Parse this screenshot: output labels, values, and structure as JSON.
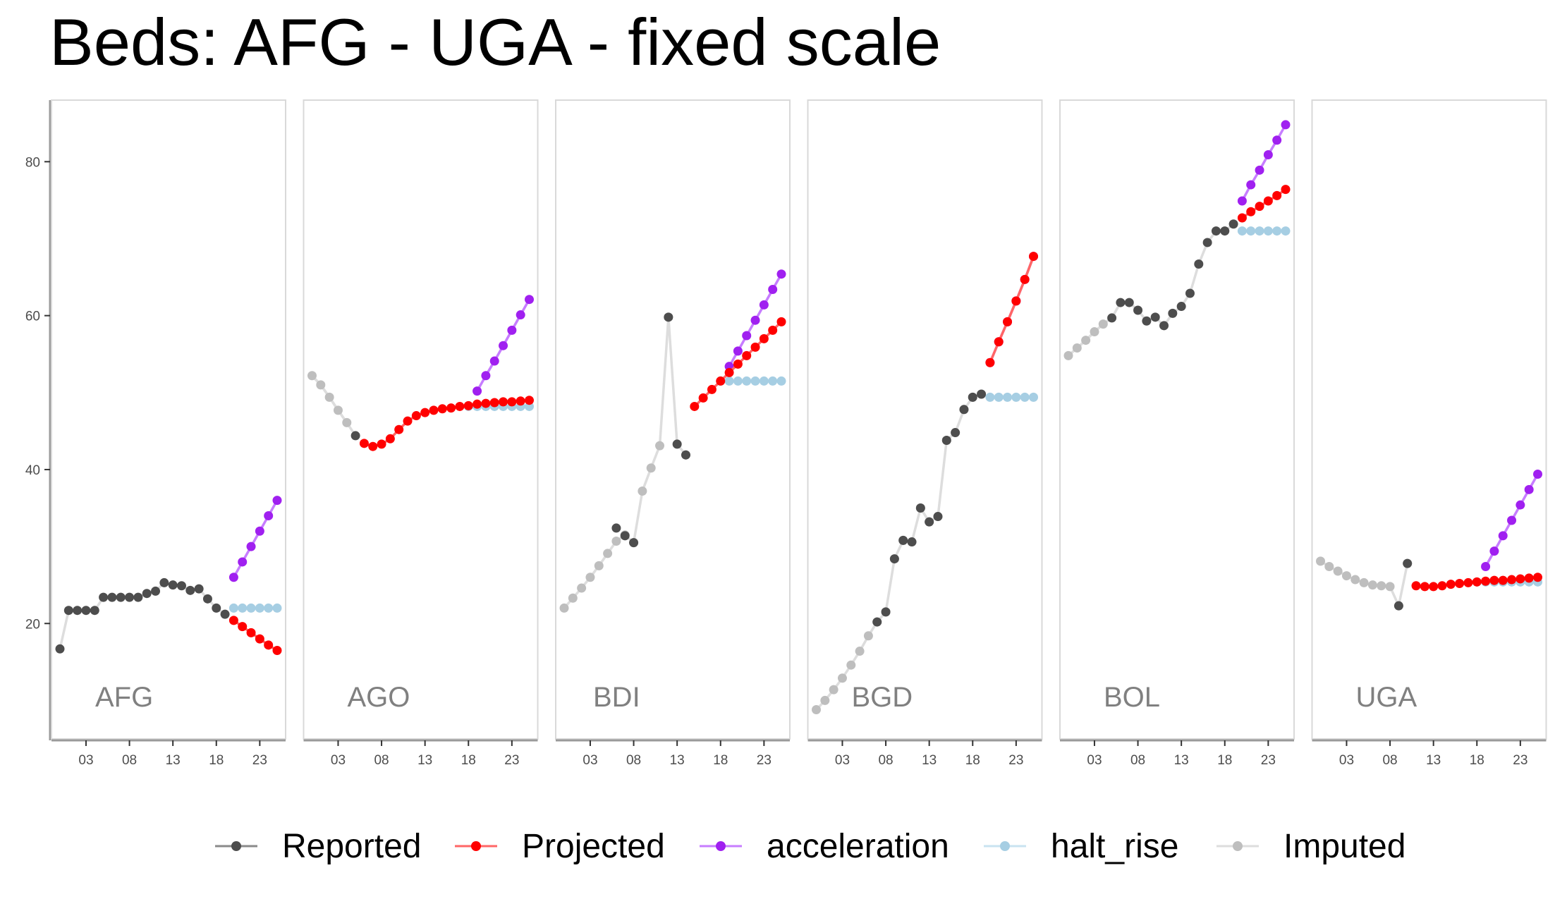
{
  "title": "Beds: AFG - UGA - fixed scale",
  "colors": {
    "Reported": "#4d4d4d",
    "Projected": "#ff0000",
    "acceleration": "#a020f0",
    "halt_rise": "#a6cee3",
    "Imputed": "#bebebe"
  },
  "chart_data": {
    "type": "line",
    "facets": [
      "AFG",
      "AGO",
      "BDI",
      "BGD",
      "BOL",
      "UGA"
    ],
    "xlim": [
      0,
      25
    ],
    "ylim": [
      5,
      88
    ],
    "x_ticks": [
      3,
      8,
      13,
      18,
      23
    ],
    "x_tick_labels": [
      "03",
      "08",
      "13",
      "18",
      "23"
    ],
    "y_ticks": [
      20,
      40,
      60,
      80
    ],
    "y_tick_labels": [
      "20",
      "40",
      "60",
      "80"
    ],
    "xlabel": "",
    "ylabel": "",
    "legend_position": "bottom",
    "legend": [
      "Reported",
      "Projected",
      "acceleration",
      "halt_rise",
      "Imputed"
    ],
    "panels": [
      {
        "facet": "AFG",
        "Imputed": [],
        "Reported": [
          [
            0,
            16.7
          ],
          [
            1,
            21.7
          ],
          [
            2,
            21.7
          ],
          [
            3,
            21.7
          ],
          [
            4,
            21.7
          ],
          [
            5,
            23.4
          ],
          [
            6,
            23.4
          ],
          [
            7,
            23.4
          ],
          [
            8,
            23.4
          ],
          [
            9,
            23.4
          ],
          [
            10,
            23.9
          ],
          [
            11,
            24.2
          ],
          [
            12,
            25.3
          ],
          [
            13,
            25.0
          ],
          [
            14,
            24.9
          ],
          [
            15,
            24.3
          ],
          [
            16,
            24.5
          ],
          [
            17,
            23.2
          ],
          [
            18,
            22.0
          ],
          [
            19,
            21.2
          ]
        ],
        "Projected": [
          [
            20,
            20.4
          ],
          [
            21,
            19.6
          ],
          [
            22,
            18.8
          ],
          [
            23,
            18.0
          ],
          [
            24,
            17.2
          ],
          [
            25,
            16.5
          ]
        ],
        "acceleration": [
          [
            20,
            26.0
          ],
          [
            21,
            28.0
          ],
          [
            22,
            30.0
          ],
          [
            23,
            32.0
          ],
          [
            24,
            34.0
          ],
          [
            25,
            36.0
          ]
        ],
        "halt_rise": [
          [
            20,
            22.0
          ],
          [
            21,
            22.0
          ],
          [
            22,
            22.0
          ],
          [
            23,
            22.0
          ],
          [
            24,
            22.0
          ],
          [
            25,
            22.0
          ]
        ]
      },
      {
        "facet": "AGO",
        "Imputed": [
          [
            0,
            52.2
          ],
          [
            1,
            51.0
          ],
          [
            2,
            49.4
          ],
          [
            3,
            47.7
          ],
          [
            4,
            46.1
          ]
        ],
        "Reported": [
          [
            5,
            44.4
          ]
        ],
        "Projected": [
          [
            6,
            43.4
          ],
          [
            7,
            43.0
          ],
          [
            8,
            43.3
          ],
          [
            9,
            44.0
          ],
          [
            10,
            45.2
          ],
          [
            11,
            46.3
          ],
          [
            12,
            47.0
          ],
          [
            13,
            47.4
          ],
          [
            14,
            47.7
          ],
          [
            15,
            47.9
          ],
          [
            16,
            48.0
          ],
          [
            17,
            48.2
          ],
          [
            18,
            48.3
          ],
          [
            19,
            48.5
          ],
          [
            20,
            48.6
          ],
          [
            21,
            48.7
          ],
          [
            22,
            48.8
          ],
          [
            23,
            48.8
          ],
          [
            24,
            48.9
          ],
          [
            25,
            49.0
          ]
        ],
        "acceleration": [
          [
            19,
            50.2
          ],
          [
            20,
            52.2
          ],
          [
            21,
            54.1
          ],
          [
            22,
            56.1
          ],
          [
            23,
            58.1
          ],
          [
            24,
            60.1
          ],
          [
            25,
            62.1
          ]
        ],
        "halt_rise": [
          [
            18,
            48.2
          ],
          [
            19,
            48.2
          ],
          [
            20,
            48.2
          ],
          [
            21,
            48.2
          ],
          [
            22,
            48.2
          ],
          [
            23,
            48.2
          ],
          [
            24,
            48.2
          ],
          [
            25,
            48.2
          ]
        ]
      },
      {
        "facet": "BDI",
        "Imputed": [
          [
            0,
            22.0
          ],
          [
            1,
            23.3
          ],
          [
            2,
            24.6
          ],
          [
            3,
            26.0
          ],
          [
            4,
            27.5
          ],
          [
            5,
            29.1
          ],
          [
            6,
            30.7
          ],
          [
            7,
            31.5
          ],
          [
            8,
            30.5
          ],
          [
            9,
            37.2
          ],
          [
            10,
            40.2
          ],
          [
            11,
            43.1
          ],
          [
            12,
            59.8
          ],
          [
            13,
            43.3
          ],
          [
            14,
            41.9
          ]
        ],
        "Reported": [
          [
            6,
            32.4
          ],
          [
            7,
            31.4
          ],
          [
            8,
            30.5
          ],
          [
            12,
            59.8
          ],
          [
            13,
            43.3
          ],
          [
            14,
            41.9
          ]
        ],
        "Projected": [
          [
            15,
            48.2
          ],
          [
            16,
            49.3
          ],
          [
            17,
            50.4
          ],
          [
            18,
            51.5
          ],
          [
            19,
            52.6
          ],
          [
            20,
            53.7
          ],
          [
            21,
            54.8
          ],
          [
            22,
            55.9
          ],
          [
            23,
            57.0
          ],
          [
            24,
            58.1
          ],
          [
            25,
            59.2
          ]
        ],
        "acceleration": [
          [
            19,
            53.4
          ],
          [
            20,
            55.4
          ],
          [
            21,
            57.4
          ],
          [
            22,
            59.4
          ],
          [
            23,
            61.4
          ],
          [
            24,
            63.4
          ],
          [
            25,
            65.4
          ]
        ],
        "halt_rise": [
          [
            18,
            51.5
          ],
          [
            19,
            51.5
          ],
          [
            20,
            51.5
          ],
          [
            21,
            51.5
          ],
          [
            22,
            51.5
          ],
          [
            23,
            51.5
          ],
          [
            24,
            51.5
          ],
          [
            25,
            51.5
          ]
        ]
      },
      {
        "facet": "BGD",
        "Imputed": [
          [
            0,
            8.8
          ],
          [
            1,
            10.0
          ],
          [
            2,
            11.4
          ],
          [
            3,
            12.9
          ],
          [
            4,
            14.6
          ],
          [
            5,
            16.4
          ],
          [
            6,
            18.4
          ],
          [
            7,
            20.2
          ],
          [
            8,
            21.5
          ],
          [
            9,
            28.4
          ],
          [
            10,
            30.8
          ],
          [
            11,
            30.6
          ],
          [
            12,
            35.0
          ],
          [
            13,
            33.2
          ],
          [
            14,
            33.9
          ],
          [
            15,
            43.8
          ],
          [
            16,
            44.8
          ],
          [
            17,
            47.8
          ],
          [
            18,
            49.4
          ],
          [
            19,
            49.8
          ]
        ],
        "Reported": [
          [
            7,
            20.2
          ],
          [
            8,
            21.5
          ],
          [
            9,
            28.4
          ],
          [
            10,
            30.8
          ],
          [
            11,
            30.6
          ],
          [
            12,
            35.0
          ],
          [
            13,
            33.2
          ],
          [
            14,
            33.9
          ],
          [
            15,
            43.8
          ],
          [
            16,
            44.8
          ],
          [
            17,
            47.8
          ],
          [
            18,
            49.4
          ],
          [
            19,
            49.8
          ]
        ],
        "Projected": [
          [
            20,
            53.9
          ],
          [
            21,
            56.6
          ],
          [
            22,
            59.2
          ],
          [
            23,
            61.9
          ],
          [
            24,
            64.7
          ],
          [
            25,
            67.7
          ]
        ],
        "acceleration": [
          [
            20,
            53.9
          ],
          [
            21,
            56.6
          ],
          [
            22,
            59.2
          ],
          [
            23,
            61.9
          ],
          [
            24,
            64.7
          ],
          [
            25,
            67.7
          ]
        ],
        "halt_rise": [
          [
            20,
            49.4
          ],
          [
            21,
            49.4
          ],
          [
            22,
            49.4
          ],
          [
            23,
            49.4
          ],
          [
            24,
            49.4
          ],
          [
            25,
            49.4
          ]
        ]
      },
      {
        "facet": "BOL",
        "Imputed": [
          [
            0,
            54.8
          ],
          [
            1,
            55.8
          ],
          [
            2,
            56.8
          ],
          [
            3,
            57.9
          ],
          [
            4,
            58.9
          ]
        ],
        "Reported": [
          [
            5,
            59.7
          ],
          [
            6,
            61.7
          ],
          [
            7,
            61.7
          ],
          [
            8,
            60.7
          ],
          [
            9,
            59.3
          ],
          [
            10,
            59.8
          ],
          [
            11,
            58.7
          ],
          [
            12,
            60.3
          ],
          [
            13,
            61.2
          ],
          [
            14,
            62.9
          ],
          [
            15,
            66.7
          ],
          [
            16,
            69.5
          ],
          [
            17,
            71.0
          ],
          [
            18,
            71.0
          ],
          [
            19,
            71.9
          ]
        ],
        "Projected": [
          [
            20,
            72.7
          ],
          [
            21,
            73.5
          ],
          [
            22,
            74.2
          ],
          [
            23,
            74.9
          ],
          [
            24,
            75.6
          ],
          [
            25,
            76.4
          ]
        ],
        "acceleration": [
          [
            20,
            74.9
          ],
          [
            21,
            77.0
          ],
          [
            22,
            78.9
          ],
          [
            23,
            80.9
          ],
          [
            24,
            82.8
          ],
          [
            25,
            84.8
          ]
        ],
        "halt_rise": [
          [
            20,
            71.0
          ],
          [
            21,
            71.0
          ],
          [
            22,
            71.0
          ],
          [
            23,
            71.0
          ],
          [
            24,
            71.0
          ],
          [
            25,
            71.0
          ]
        ]
      },
      {
        "facet": "UGA",
        "Imputed": [
          [
            0,
            28.1
          ],
          [
            1,
            27.4
          ],
          [
            2,
            26.8
          ],
          [
            3,
            26.2
          ],
          [
            4,
            25.7
          ],
          [
            5,
            25.3
          ],
          [
            6,
            25.0
          ],
          [
            7,
            24.9
          ],
          [
            8,
            24.8
          ],
          [
            9,
            22.3
          ],
          [
            10,
            27.8
          ]
        ],
        "Reported": [
          [
            9,
            22.3
          ],
          [
            10,
            27.8
          ]
        ],
        "Projected": [
          [
            11,
            24.9
          ],
          [
            12,
            24.8
          ],
          [
            13,
            24.8
          ],
          [
            14,
            24.9
          ],
          [
            15,
            25.1
          ],
          [
            16,
            25.2
          ],
          [
            17,
            25.3
          ],
          [
            18,
            25.4
          ],
          [
            19,
            25.5
          ],
          [
            20,
            25.6
          ],
          [
            21,
            25.6
          ],
          [
            22,
            25.7
          ],
          [
            23,
            25.8
          ],
          [
            24,
            25.9
          ],
          [
            25,
            26.0
          ]
        ],
        "acceleration": [
          [
            19,
            27.4
          ],
          [
            20,
            29.4
          ],
          [
            21,
            31.4
          ],
          [
            22,
            33.4
          ],
          [
            23,
            35.4
          ],
          [
            24,
            37.4
          ],
          [
            25,
            39.4
          ]
        ],
        "halt_rise": [
          [
            18,
            25.4
          ],
          [
            19,
            25.4
          ],
          [
            20,
            25.4
          ],
          [
            21,
            25.4
          ],
          [
            22,
            25.4
          ],
          [
            23,
            25.4
          ],
          [
            24,
            25.4
          ],
          [
            25,
            25.4
          ]
        ]
      }
    ]
  }
}
